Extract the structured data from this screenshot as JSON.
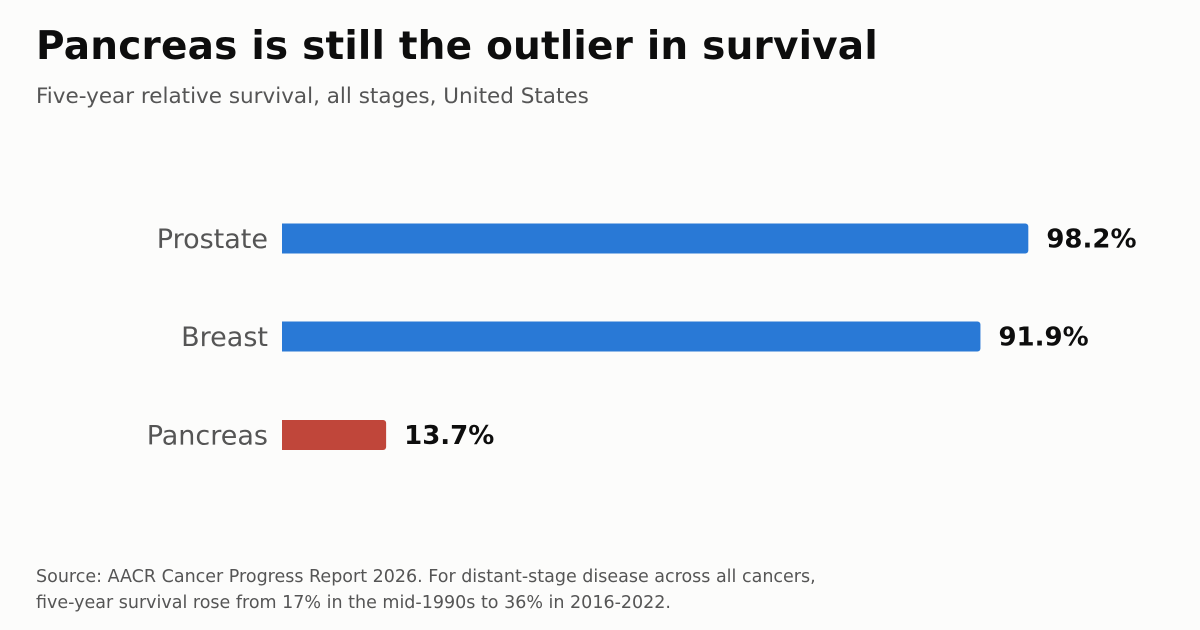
{
  "header": {
    "title": "Pancreas is still the outlier in survival",
    "subtitle": "Five-year relative survival, all stages, United States"
  },
  "chart_data": {
    "type": "bar",
    "orientation": "horizontal",
    "categories": [
      "Prostate",
      "Breast",
      "Pancreas"
    ],
    "values": [
      98.2,
      91.9,
      13.7
    ],
    "value_labels": [
      "98.2%",
      "91.9%",
      "13.7%"
    ],
    "colors": [
      "#2979d6",
      "#2979d6",
      "#c0463a"
    ],
    "xlim": [
      0,
      100
    ],
    "grid": false,
    "legend": "none"
  },
  "footer": {
    "source_line1": "Source: AACR Cancer Progress Report 2026. For distant-stage disease across all cancers,",
    "source_line2": "five-year survival rose from 17% in the mid-1990s to 36% in 2016-2022."
  }
}
